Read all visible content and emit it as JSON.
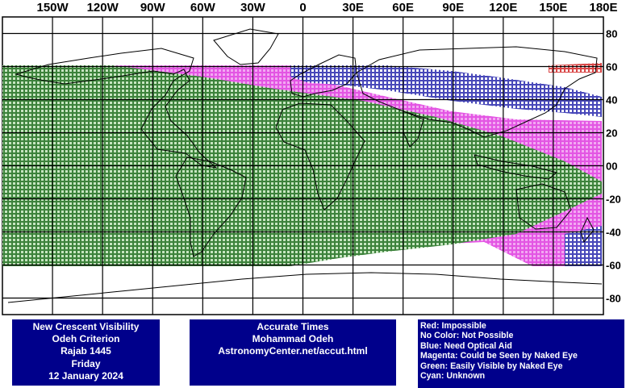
{
  "map": {
    "lon_labels": [
      "150W",
      "120W",
      "90W",
      "60W",
      "30W",
      "0",
      "30E",
      "60E",
      "90E",
      "120E",
      "150E",
      "180E"
    ],
    "lat_labels": [
      "80",
      "60",
      "40",
      "20",
      "00",
      "-20",
      "-40",
      "-60",
      "-80"
    ],
    "lat_range": [
      -90,
      90
    ],
    "lon_range": [
      -180,
      180
    ],
    "colors": {
      "red": "#d01818",
      "blue": "#1a1aa8",
      "magenta": "#e040e0",
      "green": "#1a6a1a",
      "magenta_fill": "#f2a8f2",
      "green_fill": "#c6e5c0",
      "grid": "#000000",
      "coast": "#000000"
    }
  },
  "panels": {
    "left": {
      "line1": "New Crescent Visibility",
      "line2": "Odeh Criterion",
      "line3": "Rajab 1445",
      "line4": "Friday",
      "line5": "12 January 2024"
    },
    "middle": {
      "line1": "Accurate Times",
      "line2": "Mohammad Odeh",
      "line3": "AstronomyCenter.net/accut.html"
    },
    "legend": {
      "red": "Red: Impossible",
      "none": "No Color: Not Possible",
      "blue": "Blue: Need Optical Aid",
      "magenta": "Magenta: Could be Seen by Naked Eye",
      "green": "Green: Easily Visible by Naked Eye",
      "cyan": "Cyan: Unknown"
    }
  }
}
